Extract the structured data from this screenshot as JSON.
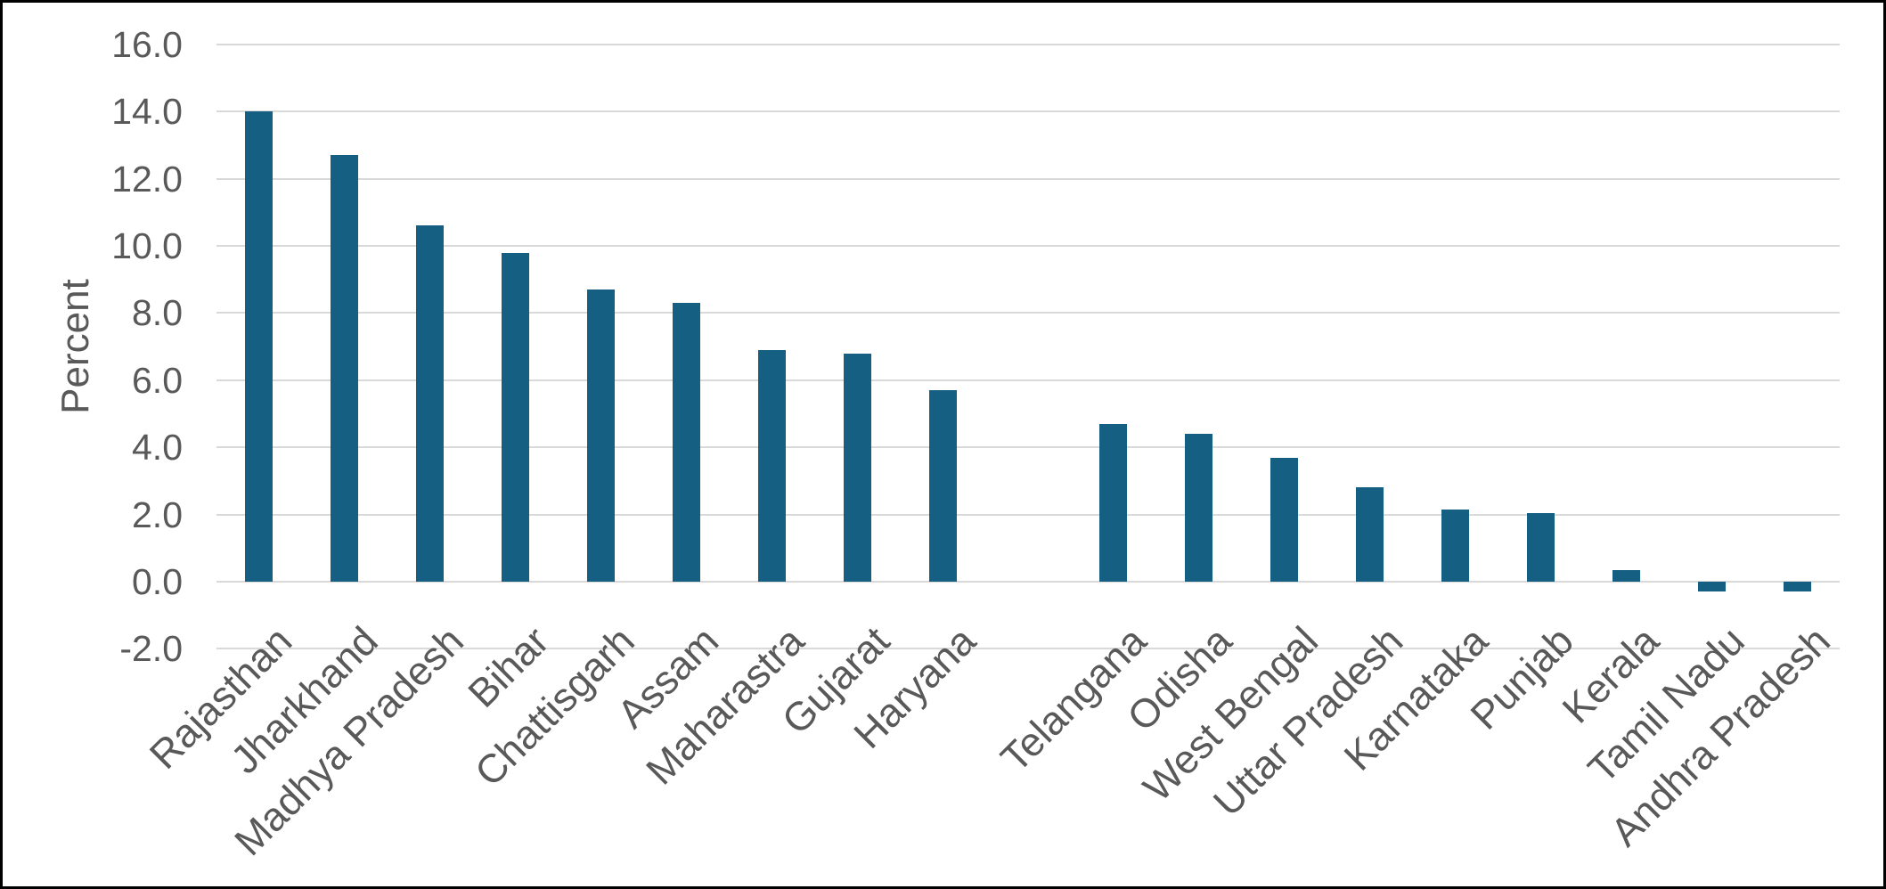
{
  "chart_data": {
    "type": "bar",
    "title": "",
    "xlabel": "",
    "ylabel": "Percent",
    "categories": [
      "Rajasthan",
      "Jharkhand",
      "Madhya Pradesh",
      "Bihar",
      "Chattisgarh",
      "Assam",
      "Maharastra",
      "Gujarat",
      "Haryana",
      "",
      "Telangana",
      "Odisha",
      "West Bengal",
      "Uttar Pradesh",
      "Karnataka",
      "Punjab",
      "Kerala",
      "Tamil Nadu",
      "Andhra Pradesh"
    ],
    "values": [
      14.0,
      12.7,
      10.6,
      9.8,
      8.7,
      8.3,
      6.9,
      6.8,
      5.7,
      null,
      4.7,
      4.4,
      3.7,
      2.8,
      2.15,
      2.05,
      0.35,
      -0.3,
      -0.3
    ],
    "ylim": [
      -2.0,
      16.0
    ],
    "ytick_step": 2.0,
    "yticks": [
      "16.0",
      "14.0",
      "12.0",
      "10.0",
      "8.0",
      "6.0",
      "4.0",
      "2.0",
      "0.0",
      "-2.0"
    ],
    "grid": true,
    "legend": false,
    "xtick_rotation_deg": 45,
    "colors": {
      "bar": "#156082",
      "gridline": "#D9D9D9",
      "axis_text": "#595959",
      "frame_border": "#000000",
      "background": "#FFFFFF"
    }
  }
}
